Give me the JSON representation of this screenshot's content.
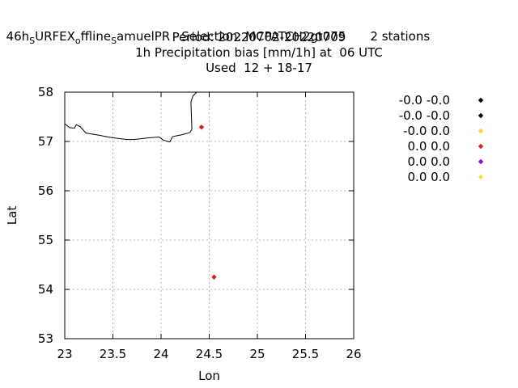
{
  "header": {
    "line1_parts": [
      {
        "text": "46h",
        "sub": false
      },
      {
        "text": "S",
        "sub": true
      },
      {
        "text": "URFEX",
        "sub": false
      },
      {
        "text": "o",
        "sub": true
      },
      {
        "text": "ffline",
        "sub": false
      },
      {
        "text": "S",
        "sub": true
      },
      {
        "text": "amuelPR",
        "sub": false
      }
    ],
    "selection": "Selection: MCPATCH2gt075",
    "stations": "2 stations",
    "period": "Period: 20220702-20220709",
    "parameter": "1h Precipitation bias [mm/1h] at  06 UTC",
    "used": "Used  12 + 18-17"
  },
  "chart_data": {
    "type": "scatter",
    "xlabel": "Lon",
    "ylabel": "Lat",
    "xlim": [
      23,
      26
    ],
    "ylim": [
      53,
      58
    ],
    "xticks": [
      23,
      23.5,
      24,
      24.5,
      25,
      25.5,
      26
    ],
    "xtick_labels": [
      "23",
      "23.5",
      "24",
      "24.5",
      "25",
      "25.5",
      "26"
    ],
    "yticks": [
      53,
      54,
      55,
      56,
      57,
      58
    ],
    "ytick_labels": [
      "53",
      "54",
      "55",
      "56",
      "57",
      "58"
    ],
    "grid": true,
    "legend_position": "right",
    "points": [
      {
        "lon": 24.42,
        "lat": 57.29,
        "color": "#d62020"
      },
      {
        "lon": 24.55,
        "lat": 54.25,
        "color": "#d62020"
      }
    ],
    "legend": [
      {
        "label": "-0.0 -0.0",
        "color": "#000000"
      },
      {
        "label": "-0.0 -0.0",
        "color": "#000000"
      },
      {
        "label": "-0.0 0.0",
        "color": "#ffd040"
      },
      {
        "label": "0.0 0.0",
        "color": "#d62020"
      },
      {
        "label": "0.0 0.0",
        "color": "#8a10d8"
      },
      {
        "label": "0.0 0.0",
        "color": "#ffe040"
      }
    ],
    "coastline": [
      [
        23.0,
        57.36
      ],
      [
        23.05,
        57.28
      ],
      [
        23.1,
        57.27
      ],
      [
        23.12,
        57.34
      ],
      [
        23.16,
        57.3
      ],
      [
        23.22,
        57.17
      ],
      [
        23.35,
        57.13
      ],
      [
        23.45,
        57.09
      ],
      [
        23.55,
        57.06
      ],
      [
        23.65,
        57.04
      ],
      [
        23.72,
        57.04
      ],
      [
        23.85,
        57.07
      ],
      [
        23.98,
        57.09
      ],
      [
        24.02,
        57.03
      ],
      [
        24.09,
        56.99
      ],
      [
        24.12,
        57.1
      ],
      [
        24.2,
        57.13
      ],
      [
        24.3,
        57.18
      ],
      [
        24.32,
        57.25
      ],
      [
        24.31,
        57.8
      ],
      [
        24.33,
        57.92
      ],
      [
        24.37,
        58.0
      ]
    ]
  }
}
